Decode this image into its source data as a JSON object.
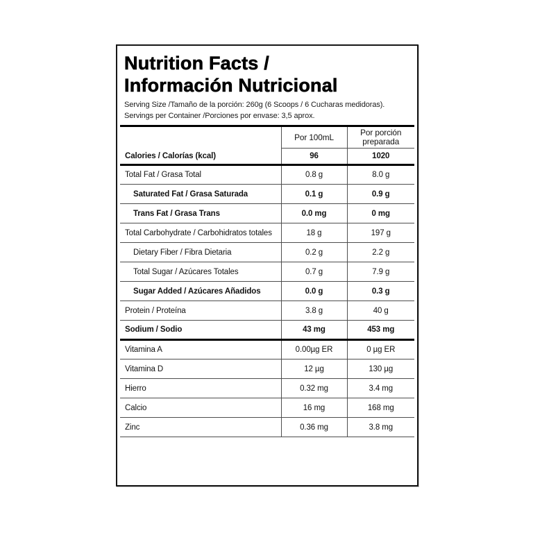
{
  "title": {
    "line1": "Nutrition Facts /",
    "line2": "Información Nutricional"
  },
  "serving": {
    "line1": "Serving Size /Tamaño de la porción: 260g (6 Scoops / 6 Cucharas medidoras).",
    "line2": "Servings per Container /Porciones por envase: 3,5 aprox."
  },
  "table": {
    "headers": {
      "per_100ml": "Por 100mL",
      "per_portion": "Por porción preparada"
    },
    "rows": [
      {
        "label": "Calories / Calorías (kcal)",
        "per100": "96",
        "portion": "1020"
      },
      {
        "label": "Total Fat / Grasa Total",
        "per100": "0.8 g",
        "portion": "8.0 g"
      },
      {
        "label": "Saturated Fat / Grasa Saturada",
        "per100": "0.1 g",
        "portion": "0.9 g"
      },
      {
        "label": "Trans Fat / Grasa Trans",
        "per100": "0.0 mg",
        "portion": "0 mg"
      },
      {
        "label": "Total Carbohydrate / Carbohidratos totales",
        "per100": "18 g",
        "portion": "197 g"
      },
      {
        "label": "Dietary Fiber / Fibra Dietaria",
        "per100": "0.2 g",
        "portion": "2.2 g"
      },
      {
        "label": "Total Sugar / Azúcares Totales",
        "per100": "0.7 g",
        "portion": "7.9 g"
      },
      {
        "label": "Sugar Added / Azúcares Añadidos",
        "per100": "0.0 g",
        "portion": "0.3 g"
      },
      {
        "label": "Protein / Proteína",
        "per100": "3.8 g",
        "portion": "40 g"
      },
      {
        "label": "Sodium / Sodio",
        "per100": "43 mg",
        "portion": "453 mg"
      },
      {
        "label": "Vitamina A",
        "per100": "0.00µg ER",
        "portion": "0 µg ER"
      },
      {
        "label": "Vitamina D",
        "per100": "12 µg",
        "portion": "130 µg"
      },
      {
        "label": "Hierro",
        "per100": "0.32 mg",
        "portion": "3.4 mg"
      },
      {
        "label": "Calcio",
        "per100": "16 mg",
        "portion": "168 mg"
      },
      {
        "label": "Zinc",
        "per100": "0.36 mg",
        "portion": "3.8 mg"
      }
    ]
  },
  "colors": {
    "text": "#111111",
    "thick_rule": "#000000",
    "thin_rule": "#4d4d4d",
    "background": "#ffffff"
  }
}
